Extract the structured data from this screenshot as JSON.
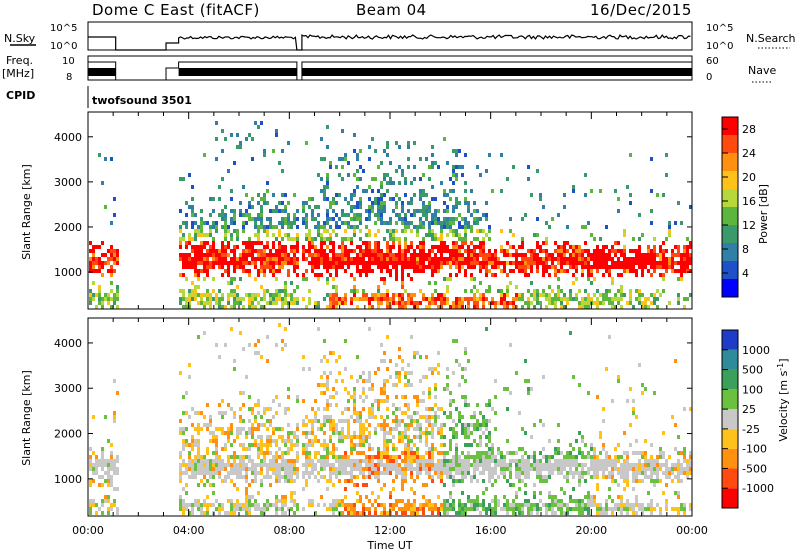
{
  "header": {
    "station": "Dome C East (fitACF)",
    "beam": "Beam 04",
    "date": "16/Dec/2015"
  },
  "status_panels": {
    "nsky": {
      "label": "N.Sky",
      "ticks": [
        "10^5",
        "10^0"
      ]
    },
    "nsearch": {
      "label": "N.Search",
      "ticks": [
        "10^5",
        "10^0"
      ]
    },
    "freq": {
      "label_top": "Freq.",
      "label_unit": "[MHz]",
      "ticks": [
        "10",
        "8"
      ]
    },
    "nave": {
      "label": "Nave",
      "ticks": [
        "60",
        "0"
      ]
    },
    "cpid": {
      "label": "CPID",
      "value": "twofsound 3501"
    }
  },
  "x_axis": {
    "label": "Time UT",
    "ticks": [
      "00:00",
      "04:00",
      "08:00",
      "12:00",
      "16:00",
      "20:00",
      "00:00"
    ]
  },
  "chart_data": [
    {
      "type": "heatmap",
      "name": "power",
      "xlabel": "Time UT",
      "ylabel": "Slant Range [km]",
      "y_ticks": [
        1000,
        2000,
        3000,
        4000
      ],
      "ylim": [
        180,
        4550
      ],
      "xlim_hours": [
        0,
        24
      ],
      "colorbar": {
        "label": "Power [dB]",
        "ticks": [
          4,
          8,
          12,
          16,
          20,
          24,
          28
        ],
        "range": [
          0,
          30
        ],
        "colors": [
          "#0000ff",
          "#1e50c8",
          "#2f7fa6",
          "#3a9a6a",
          "#5cb53c",
          "#b7d83a",
          "#ffc21a",
          "#ff9010",
          "#ff4a10",
          "#ff0000"
        ]
      }
    },
    {
      "type": "heatmap",
      "name": "velocity",
      "xlabel": "Time UT",
      "ylabel": "Slant Range [km]",
      "y_ticks": [
        1000,
        2000,
        3000,
        4000
      ],
      "ylim": [
        180,
        4550
      ],
      "xlim_hours": [
        0,
        24
      ],
      "colorbar": {
        "label": "Velocity [m s^-1]",
        "ticks": [
          1000,
          500,
          100,
          25,
          -25,
          -100,
          -500,
          -1000
        ],
        "colors": [
          "#1e3cc8",
          "#2f8a9a",
          "#3aa05a",
          "#6cc040",
          "#c8c8c8",
          "#ffc21a",
          "#ff9010",
          "#ff4a10",
          "#ff0000"
        ]
      }
    }
  ]
}
